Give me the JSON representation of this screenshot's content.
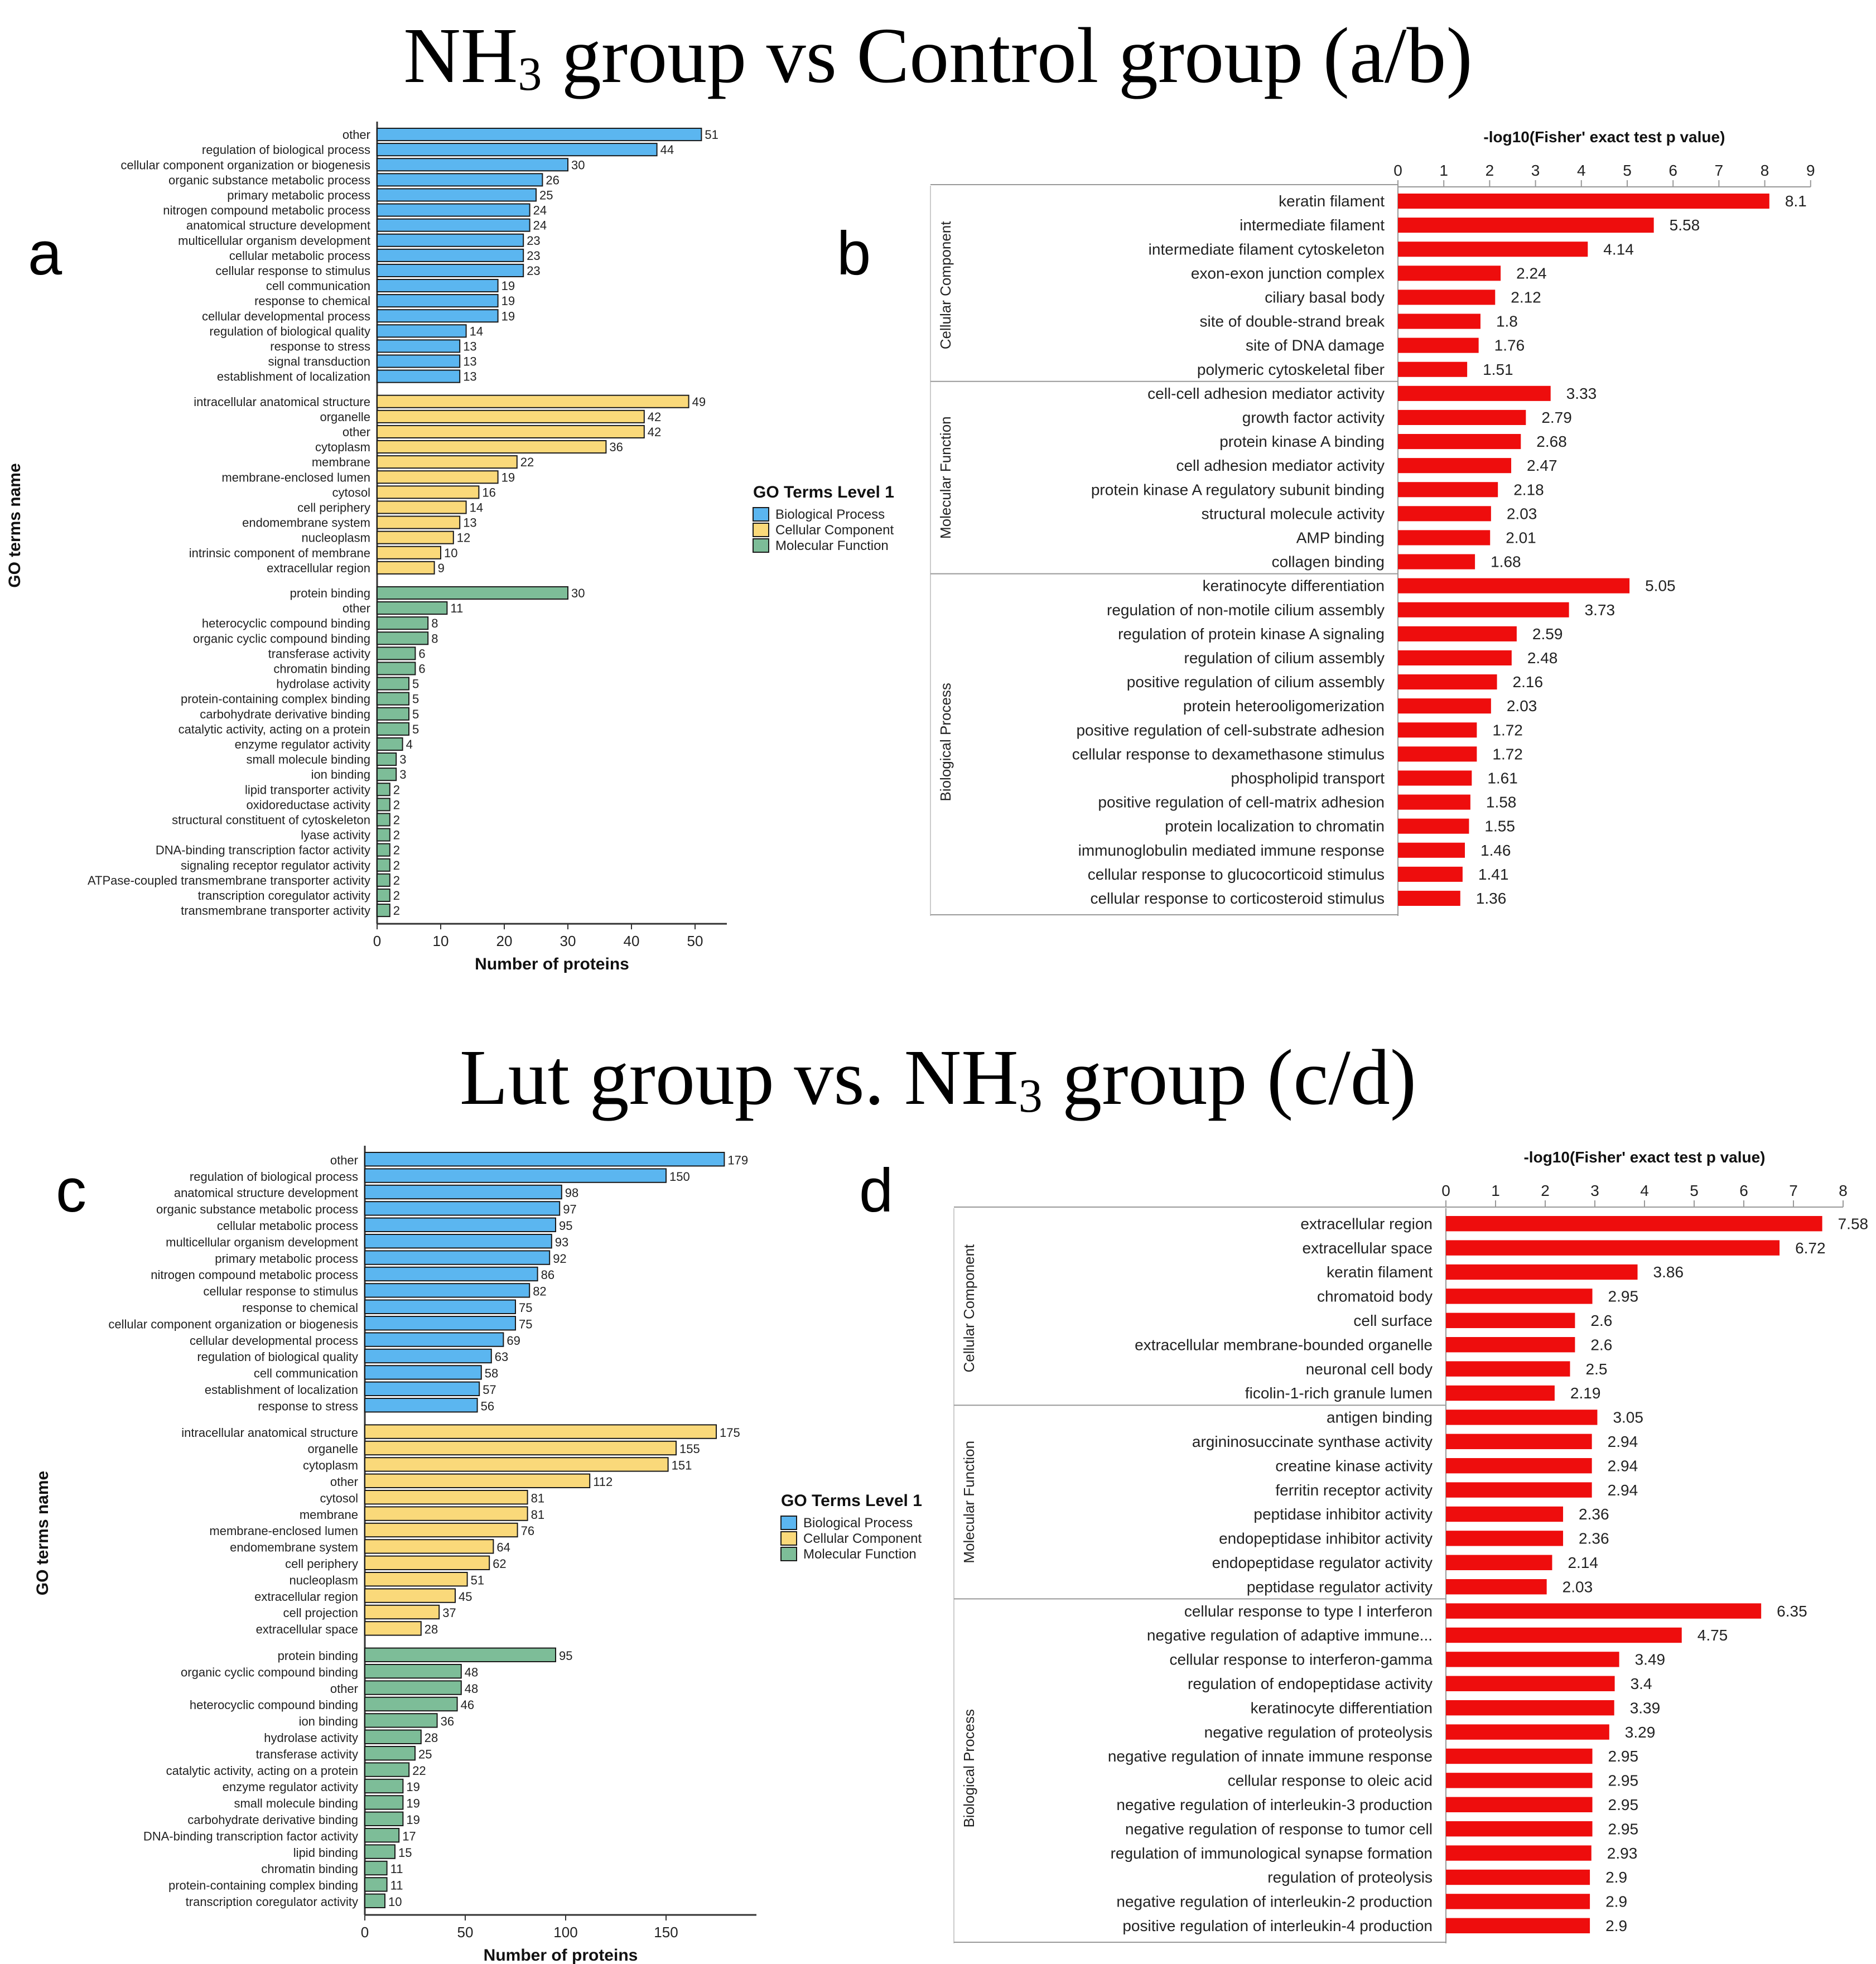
{
  "sections": [
    {
      "title_pre": "NH",
      "title_sub": "3",
      "title_post": " group vs Control group (a/b)"
    },
    {
      "title_pre": "Lut group vs. NH",
      "title_sub": "3",
      "title_post": " group (c/d)"
    }
  ],
  "colors": {
    "biological_process": "#5bb6f0",
    "cellular_component": "#fad97a",
    "molecular_function": "#7dbd98",
    "enrichment_bar": "#ee0d0d"
  },
  "chart_data": [
    {
      "panel": "a",
      "type": "bar",
      "orientation": "horizontal",
      "xlabel": "Number of proteins",
      "ylabel": "GO terms name",
      "xlim": [
        0,
        55
      ],
      "xticks": [
        0,
        10,
        20,
        30,
        40,
        50
      ],
      "legend": {
        "title": "GO Terms Level 1",
        "position": "right",
        "entries": [
          "Biological Process",
          "Cellular Component",
          "Molecular Function"
        ]
      },
      "groups": [
        {
          "name": "Biological Process",
          "categories": [
            "other",
            "regulation of biological process",
            "cellular component organization or biogenesis",
            "organic substance metabolic process",
            "primary metabolic process",
            "nitrogen compound metabolic process",
            "anatomical structure development",
            "multicellular organism development",
            "cellular metabolic process",
            "cellular response to stimulus",
            "cell communication",
            "response to chemical",
            "cellular developmental process",
            "regulation of biological quality",
            "response to stress",
            "signal transduction",
            "establishment of localization"
          ],
          "values": [
            51,
            44,
            30,
            26,
            25,
            24,
            24,
            23,
            23,
            23,
            19,
            19,
            19,
            14,
            13,
            13,
            13
          ]
        },
        {
          "name": "Cellular Component",
          "categories": [
            "intracellular anatomical structure",
            "organelle",
            "other",
            "cytoplasm",
            "membrane",
            "membrane-enclosed lumen",
            "cytosol",
            "cell periphery",
            "endomembrane system",
            "nucleoplasm",
            "intrinsic component of membrane",
            "extracellular region"
          ],
          "values": [
            49,
            42,
            42,
            36,
            22,
            19,
            16,
            14,
            13,
            12,
            10,
            9
          ]
        },
        {
          "name": "Molecular Function",
          "categories": [
            "protein binding",
            "other",
            "heterocyclic compound binding",
            "organic cyclic compound binding",
            "transferase activity",
            "chromatin binding",
            "hydrolase activity",
            "protein-containing complex binding",
            "carbohydrate derivative binding",
            "catalytic activity, acting on a protein",
            "enzyme regulator activity",
            "small molecule binding",
            "ion binding",
            "lipid transporter activity",
            "oxidoreductase activity",
            "structural constituent of cytoskeleton",
            "lyase activity",
            "DNA-binding transcription factor activity",
            "signaling receptor regulator activity",
            "ATPase-coupled transmembrane transporter activity",
            "transcription coregulator activity",
            "transmembrane transporter activity"
          ],
          "values": [
            30,
            11,
            8,
            8,
            6,
            6,
            5,
            5,
            5,
            5,
            4,
            3,
            3,
            2,
            2,
            2,
            2,
            2,
            2,
            2,
            2,
            2
          ]
        }
      ]
    },
    {
      "panel": "b",
      "type": "bar",
      "orientation": "horizontal",
      "title": "-log10(Fisher' exact test p value)",
      "xlim": [
        0,
        9
      ],
      "xticks": [
        0,
        1,
        2,
        3,
        4,
        5,
        6,
        7,
        8,
        9
      ],
      "groups": [
        {
          "name": "Cellular Component",
          "categories": [
            "keratin filament",
            "intermediate filament",
            "intermediate filament cytoskeleton",
            "exon-exon junction complex",
            "ciliary basal body",
            "site of double-strand break",
            "site of DNA damage",
            "polymeric cytoskeletal fiber"
          ],
          "values": [
            8.1,
            5.58,
            4.14,
            2.24,
            2.12,
            1.8,
            1.76,
            1.51
          ]
        },
        {
          "name": "Molecular Function",
          "categories": [
            "cell-cell adhesion mediator activity",
            "growth factor activity",
            "protein kinase A binding",
            "cell adhesion mediator activity",
            "protein kinase A regulatory subunit binding",
            "structural molecule activity",
            "AMP binding",
            "collagen binding"
          ],
          "values": [
            3.33,
            2.79,
            2.68,
            2.47,
            2.18,
            2.03,
            2.01,
            1.68
          ]
        },
        {
          "name": "Biological Process",
          "categories": [
            "keratinocyte differentiation",
            "regulation of non-motile cilium assembly",
            "regulation of protein kinase A signaling",
            "regulation of cilium assembly",
            "positive regulation of cilium assembly",
            "protein heterooligomerization",
            "positive regulation of cell-substrate adhesion",
            "cellular response to dexamethasone stimulus",
            "phospholipid transport",
            "positive regulation of cell-matrix adhesion",
            "protein localization to chromatin",
            "immunoglobulin mediated immune response",
            "cellular response to glucocorticoid stimulus",
            "cellular response to corticosteroid stimulus"
          ],
          "values": [
            5.05,
            3.73,
            2.59,
            2.48,
            2.16,
            2.03,
            1.72,
            1.72,
            1.61,
            1.58,
            1.55,
            1.46,
            1.41,
            1.36
          ]
        }
      ]
    },
    {
      "panel": "c",
      "type": "bar",
      "orientation": "horizontal",
      "xlabel": "Number of proteins",
      "ylabel": "GO terms name",
      "xlim": [
        0,
        195
      ],
      "xticks": [
        0,
        50,
        100,
        150
      ],
      "legend": {
        "title": "GO Terms Level 1",
        "position": "right",
        "entries": [
          "Biological Process",
          "Cellular Component",
          "Molecular Function"
        ]
      },
      "groups": [
        {
          "name": "Biological Process",
          "categories": [
            "other",
            "regulation of biological process",
            "anatomical structure development",
            "organic substance metabolic process",
            "cellular metabolic process",
            "multicellular organism development",
            "primary metabolic process",
            "nitrogen compound metabolic process",
            "cellular response to stimulus",
            "response to chemical",
            "cellular component organization or biogenesis",
            "cellular developmental process",
            "regulation of biological quality",
            "cell communication",
            "establishment of localization",
            "response to stress"
          ],
          "values": [
            179,
            150,
            98,
            97,
            95,
            93,
            92,
            86,
            82,
            75,
            75,
            69,
            63,
            58,
            57,
            56
          ]
        },
        {
          "name": "Cellular Component",
          "categories": [
            "intracellular anatomical structure",
            "organelle",
            "cytoplasm",
            "other",
            "cytosol",
            "membrane",
            "membrane-enclosed lumen",
            "endomembrane system",
            "cell periphery",
            "nucleoplasm",
            "extracellular region",
            "cell projection",
            "extracellular space"
          ],
          "values": [
            175,
            155,
            151,
            112,
            81,
            81,
            76,
            64,
            62,
            51,
            45,
            37,
            28
          ]
        },
        {
          "name": "Molecular Function",
          "categories": [
            "protein binding",
            "organic cyclic compound binding",
            "other",
            "heterocyclic compound binding",
            "ion binding",
            "hydrolase activity",
            "transferase activity",
            "catalytic activity, acting on a protein",
            "enzyme regulator activity",
            "small molecule binding",
            "carbohydrate derivative binding",
            "DNA-binding transcription factor activity",
            "lipid binding",
            "chromatin binding",
            "protein-containing complex binding",
            "transcription coregulator activity"
          ],
          "values": [
            95,
            48,
            48,
            46,
            36,
            28,
            25,
            22,
            19,
            19,
            19,
            17,
            15,
            11,
            11,
            10
          ]
        }
      ]
    },
    {
      "panel": "d",
      "type": "bar",
      "orientation": "horizontal",
      "title": "-log10(Fisher' exact test p value)",
      "xlim": [
        0,
        8
      ],
      "xticks": [
        0,
        1,
        2,
        3,
        4,
        5,
        6,
        7,
        8
      ],
      "groups": [
        {
          "name": "Cellular Component",
          "categories": [
            "extracellular region",
            "extracellular space",
            "keratin filament",
            "chromatoid body",
            "cell surface",
            "extracellular membrane-bounded organelle",
            "neuronal cell body",
            "ficolin-1-rich granule lumen"
          ],
          "values": [
            7.58,
            6.72,
            3.86,
            2.95,
            2.6,
            2.6,
            2.5,
            2.19
          ]
        },
        {
          "name": "Molecular Function",
          "categories": [
            "antigen binding",
            "argininosuccinate synthase activity",
            "creatine kinase activity",
            "ferritin receptor activity",
            "peptidase inhibitor activity",
            "endopeptidase inhibitor activity",
            "endopeptidase regulator activity",
            "peptidase regulator activity"
          ],
          "values": [
            3.05,
            2.94,
            2.94,
            2.94,
            2.36,
            2.36,
            2.14,
            2.03
          ]
        },
        {
          "name": "Biological Process",
          "categories": [
            "cellular response to type I interferon",
            "negative regulation of adaptive immune...",
            "cellular response to interferon-gamma",
            "regulation of endopeptidase activity",
            "keratinocyte differentiation",
            "negative regulation of proteolysis",
            "negative regulation of innate immune response",
            "cellular response to oleic acid",
            "negative regulation of interleukin-3 production",
            "negative regulation of response to tumor cell",
            "regulation of immunological synapse formation",
            "regulation of proteolysis",
            "negative regulation of interleukin-2 production",
            "positive regulation of interleukin-4 production"
          ],
          "values": [
            6.35,
            4.75,
            3.49,
            3.4,
            3.39,
            3.29,
            2.95,
            2.95,
            2.95,
            2.95,
            2.93,
            2.9,
            2.9,
            2.9
          ]
        }
      ]
    }
  ]
}
